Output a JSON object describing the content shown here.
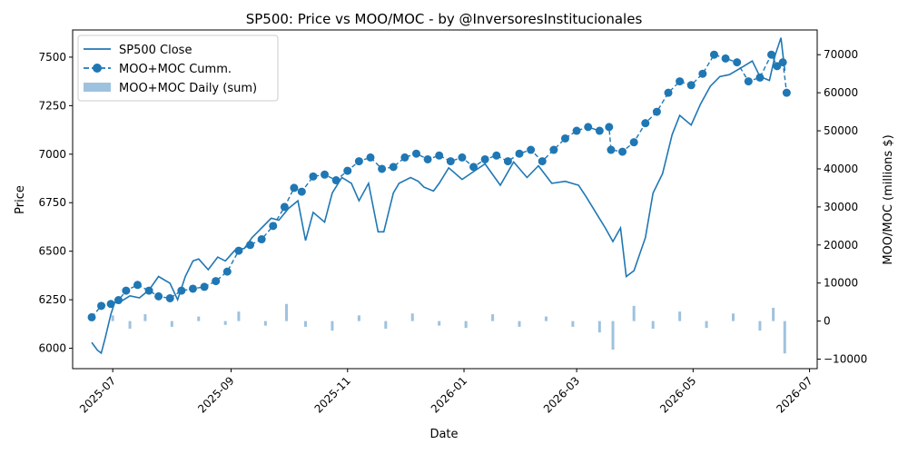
{
  "chart_data": {
    "type": "line",
    "title": "SP500: Price vs MOO/MOC   -   by @InversoresInstitucionales",
    "xlabel": "Date",
    "ylabel_left": "Price",
    "ylabel_right": "MOO/MOC (millions $)",
    "xlim": [
      "2025-06-10",
      "2026-07-05"
    ],
    "ylim_left": [
      5895,
      7640
    ],
    "ylim_right": [
      -12500,
      76500
    ],
    "x_ticks": [
      "2025-07",
      "2025-09",
      "2025-11",
      "2026-01",
      "2026-03",
      "2026-05",
      "2026-07"
    ],
    "y_ticks_left": [
      6000,
      6250,
      6500,
      6750,
      7000,
      7250,
      7500
    ],
    "y_ticks_right": [
      -10000,
      0,
      10000,
      20000,
      30000,
      40000,
      50000,
      60000,
      70000
    ],
    "legend_position": "top-left",
    "colors": {
      "price": "#1f77b4",
      "cumm": "#1f77b4",
      "daily": "#9ec2de"
    },
    "series": [
      {
        "name": "SP500 Close",
        "axis": "left",
        "style": "line",
        "x": [
          "2025-06-20",
          "2025-06-23",
          "2025-06-25",
          "2025-06-27",
          "2025-06-30",
          "2025-07-02",
          "2025-07-05",
          "2025-07-10",
          "2025-07-15",
          "2025-07-20",
          "2025-07-25",
          "2025-07-31",
          "2025-08-04",
          "2025-08-08",
          "2025-08-12",
          "2025-08-15",
          "2025-08-20",
          "2025-08-25",
          "2025-08-29",
          "2025-09-03",
          "2025-09-08",
          "2025-09-12",
          "2025-09-17",
          "2025-09-22",
          "2025-09-26",
          "2025-10-01",
          "2025-10-06",
          "2025-10-10",
          "2025-10-14",
          "2025-10-20",
          "2025-10-24",
          "2025-10-29",
          "2025-11-03",
          "2025-11-07",
          "2025-11-12",
          "2025-11-17",
          "2025-11-20",
          "2025-11-25",
          "2025-11-28",
          "2025-12-04",
          "2025-12-08",
          "2025-12-11",
          "2025-12-16",
          "2025-12-19",
          "2025-12-24",
          "2025-12-31",
          "2026-01-06",
          "2026-01-12",
          "2026-01-20",
          "2026-01-27",
          "2026-02-03",
          "2026-02-09",
          "2026-02-16",
          "2026-02-23",
          "2026-03-02",
          "2026-03-06",
          "2026-03-11",
          "2026-03-16",
          "2026-03-20",
          "2026-03-24",
          "2026-03-27",
          "2026-03-31",
          "2026-04-06",
          "2026-04-10",
          "2026-04-15",
          "2026-04-20",
          "2026-04-24",
          "2026-04-30",
          "2026-05-05",
          "2026-05-10",
          "2026-05-15",
          "2026-05-20",
          "2026-05-27",
          "2026-06-01",
          "2026-06-05",
          "2026-06-10",
          "2026-06-13",
          "2026-06-16",
          "2026-06-18"
        ],
        "values": [
          6030,
          5990,
          5975,
          6050,
          6175,
          6235,
          6240,
          6270,
          6260,
          6300,
          6370,
          6335,
          6250,
          6370,
          6450,
          6460,
          6405,
          6470,
          6450,
          6505,
          6515,
          6570,
          6620,
          6670,
          6660,
          6720,
          6760,
          6555,
          6700,
          6650,
          6800,
          6880,
          6850,
          6760,
          6850,
          6600,
          6600,
          6800,
          6850,
          6880,
          6860,
          6830,
          6810,
          6850,
          6930,
          6870,
          6910,
          6950,
          6840,
          6960,
          6880,
          6940,
          6850,
          6860,
          6840,
          6780,
          6700,
          6620,
          6550,
          6620,
          6370,
          6400,
          6570,
          6800,
          6900,
          7100,
          7200,
          7150,
          7260,
          7350,
          7400,
          7410,
          7450,
          7480,
          7400,
          7380,
          7510,
          7600,
          7430
        ]
      },
      {
        "name": "MOO+MOC Cumm.",
        "axis": "right",
        "style": "dashed-markers",
        "x": [
          "2025-06-20",
          "2025-06-25",
          "2025-06-30",
          "2025-07-04",
          "2025-07-08",
          "2025-07-14",
          "2025-07-20",
          "2025-07-25",
          "2025-07-31",
          "2025-08-06",
          "2025-08-12",
          "2025-08-18",
          "2025-08-24",
          "2025-08-30",
          "2025-09-05",
          "2025-09-11",
          "2025-09-17",
          "2025-09-23",
          "2025-09-29",
          "2025-10-04",
          "2025-10-08",
          "2025-10-14",
          "2025-10-20",
          "2025-10-26",
          "2025-11-01",
          "2025-11-07",
          "2025-11-13",
          "2025-11-19",
          "2025-11-25",
          "2025-12-01",
          "2025-12-07",
          "2025-12-13",
          "2025-12-19",
          "2025-12-25",
          "2025-12-31",
          "2026-01-06",
          "2026-01-12",
          "2026-01-18",
          "2026-01-24",
          "2026-01-30",
          "2026-02-05",
          "2026-02-11",
          "2026-02-17",
          "2026-02-23",
          "2026-03-01",
          "2026-03-07",
          "2026-03-13",
          "2026-03-18",
          "2026-03-19",
          "2026-03-25",
          "2026-03-31",
          "2026-04-06",
          "2026-04-12",
          "2026-04-18",
          "2026-04-24",
          "2026-04-30",
          "2026-05-06",
          "2026-05-12",
          "2026-05-18",
          "2026-05-24",
          "2026-05-30",
          "2026-06-05",
          "2026-06-11",
          "2026-06-14",
          "2026-06-17",
          "2026-06-19"
        ],
        "values": [
          1000,
          4000,
          4500,
          5500,
          8000,
          9500,
          8000,
          6500,
          6000,
          8000,
          8500,
          9000,
          10500,
          13000,
          18500,
          20000,
          21500,
          25000,
          30000,
          35000,
          34000,
          38000,
          38500,
          37000,
          39500,
          42000,
          43000,
          40000,
          40500,
          43000,
          44000,
          42500,
          43500,
          42000,
          43000,
          40500,
          42500,
          43500,
          42000,
          44000,
          45000,
          42000,
          45000,
          48000,
          50000,
          51000,
          50000,
          51000,
          45000,
          44500,
          47000,
          52000,
          55000,
          60000,
          63000,
          62000,
          65000,
          70000,
          69000,
          68000,
          63000,
          64000,
          70000,
          67000,
          68000,
          60000
        ]
      },
      {
        "name": "MOO+MOC Daily (sum)",
        "axis": "right",
        "style": "bar",
        "x": [
          "2025-06-20",
          "2025-07-01",
          "2025-07-10",
          "2025-07-18",
          "2025-08-01",
          "2025-08-15",
          "2025-08-29",
          "2025-09-05",
          "2025-09-19",
          "2025-09-30",
          "2025-10-10",
          "2025-10-24",
          "2025-11-07",
          "2025-11-21",
          "2025-12-05",
          "2025-12-19",
          "2026-01-02",
          "2026-01-16",
          "2026-01-30",
          "2026-02-13",
          "2026-02-27",
          "2026-03-13",
          "2026-03-20",
          "2026-03-31",
          "2026-04-10",
          "2026-04-24",
          "2026-05-08",
          "2026-05-22",
          "2026-06-05",
          "2026-06-12",
          "2026-06-18"
        ],
        "values": [
          1200,
          1500,
          -2000,
          1800,
          -1500,
          1200,
          -1000,
          2500,
          -1200,
          4500,
          -1500,
          -2500,
          1500,
          -2000,
          2000,
          -1200,
          -1800,
          1800,
          -1500,
          1200,
          -1500,
          -3000,
          -7500,
          4000,
          -2000,
          2500,
          -1800,
          2000,
          -2500,
          3500,
          -8500
        ]
      }
    ]
  }
}
